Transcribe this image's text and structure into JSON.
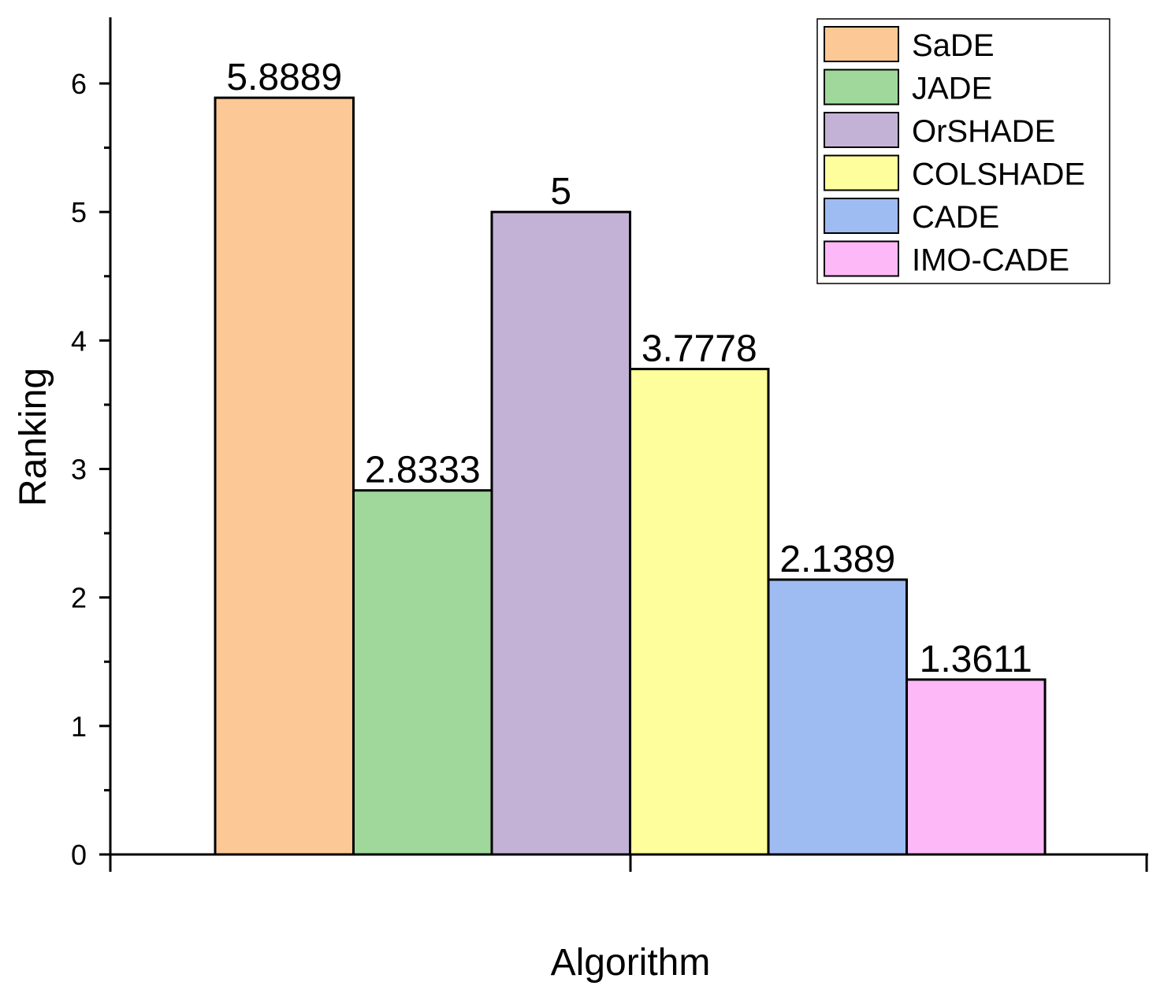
{
  "chart_data": {
    "type": "bar",
    "xlabel": "Algorithm",
    "ylabel": "Ranking",
    "ylim": [
      0,
      6.5
    ],
    "yticks": [
      0,
      1,
      2,
      3,
      4,
      5,
      6
    ],
    "grid": false,
    "legend_position": "top-right",
    "series": [
      {
        "name": "SaDE",
        "value": 5.8889,
        "label": "5.8889",
        "color": "#FBC896"
      },
      {
        "name": "JADE",
        "value": 2.8333,
        "label": "2.8333",
        "color": "#A0D89C"
      },
      {
        "name": "OrSHADE",
        "value": 5,
        "label": "5",
        "color": "#C3B2D6"
      },
      {
        "name": "COLSHADE",
        "value": 3.7778,
        "label": "3.7778",
        "color": "#FEFE9C"
      },
      {
        "name": "CADE",
        "value": 2.1389,
        "label": "2.1389",
        "color": "#9EBBF2"
      },
      {
        "name": "IMO-CADE",
        "value": 1.3611,
        "label": "1.3611",
        "color": "#FDB8F8"
      }
    ]
  }
}
